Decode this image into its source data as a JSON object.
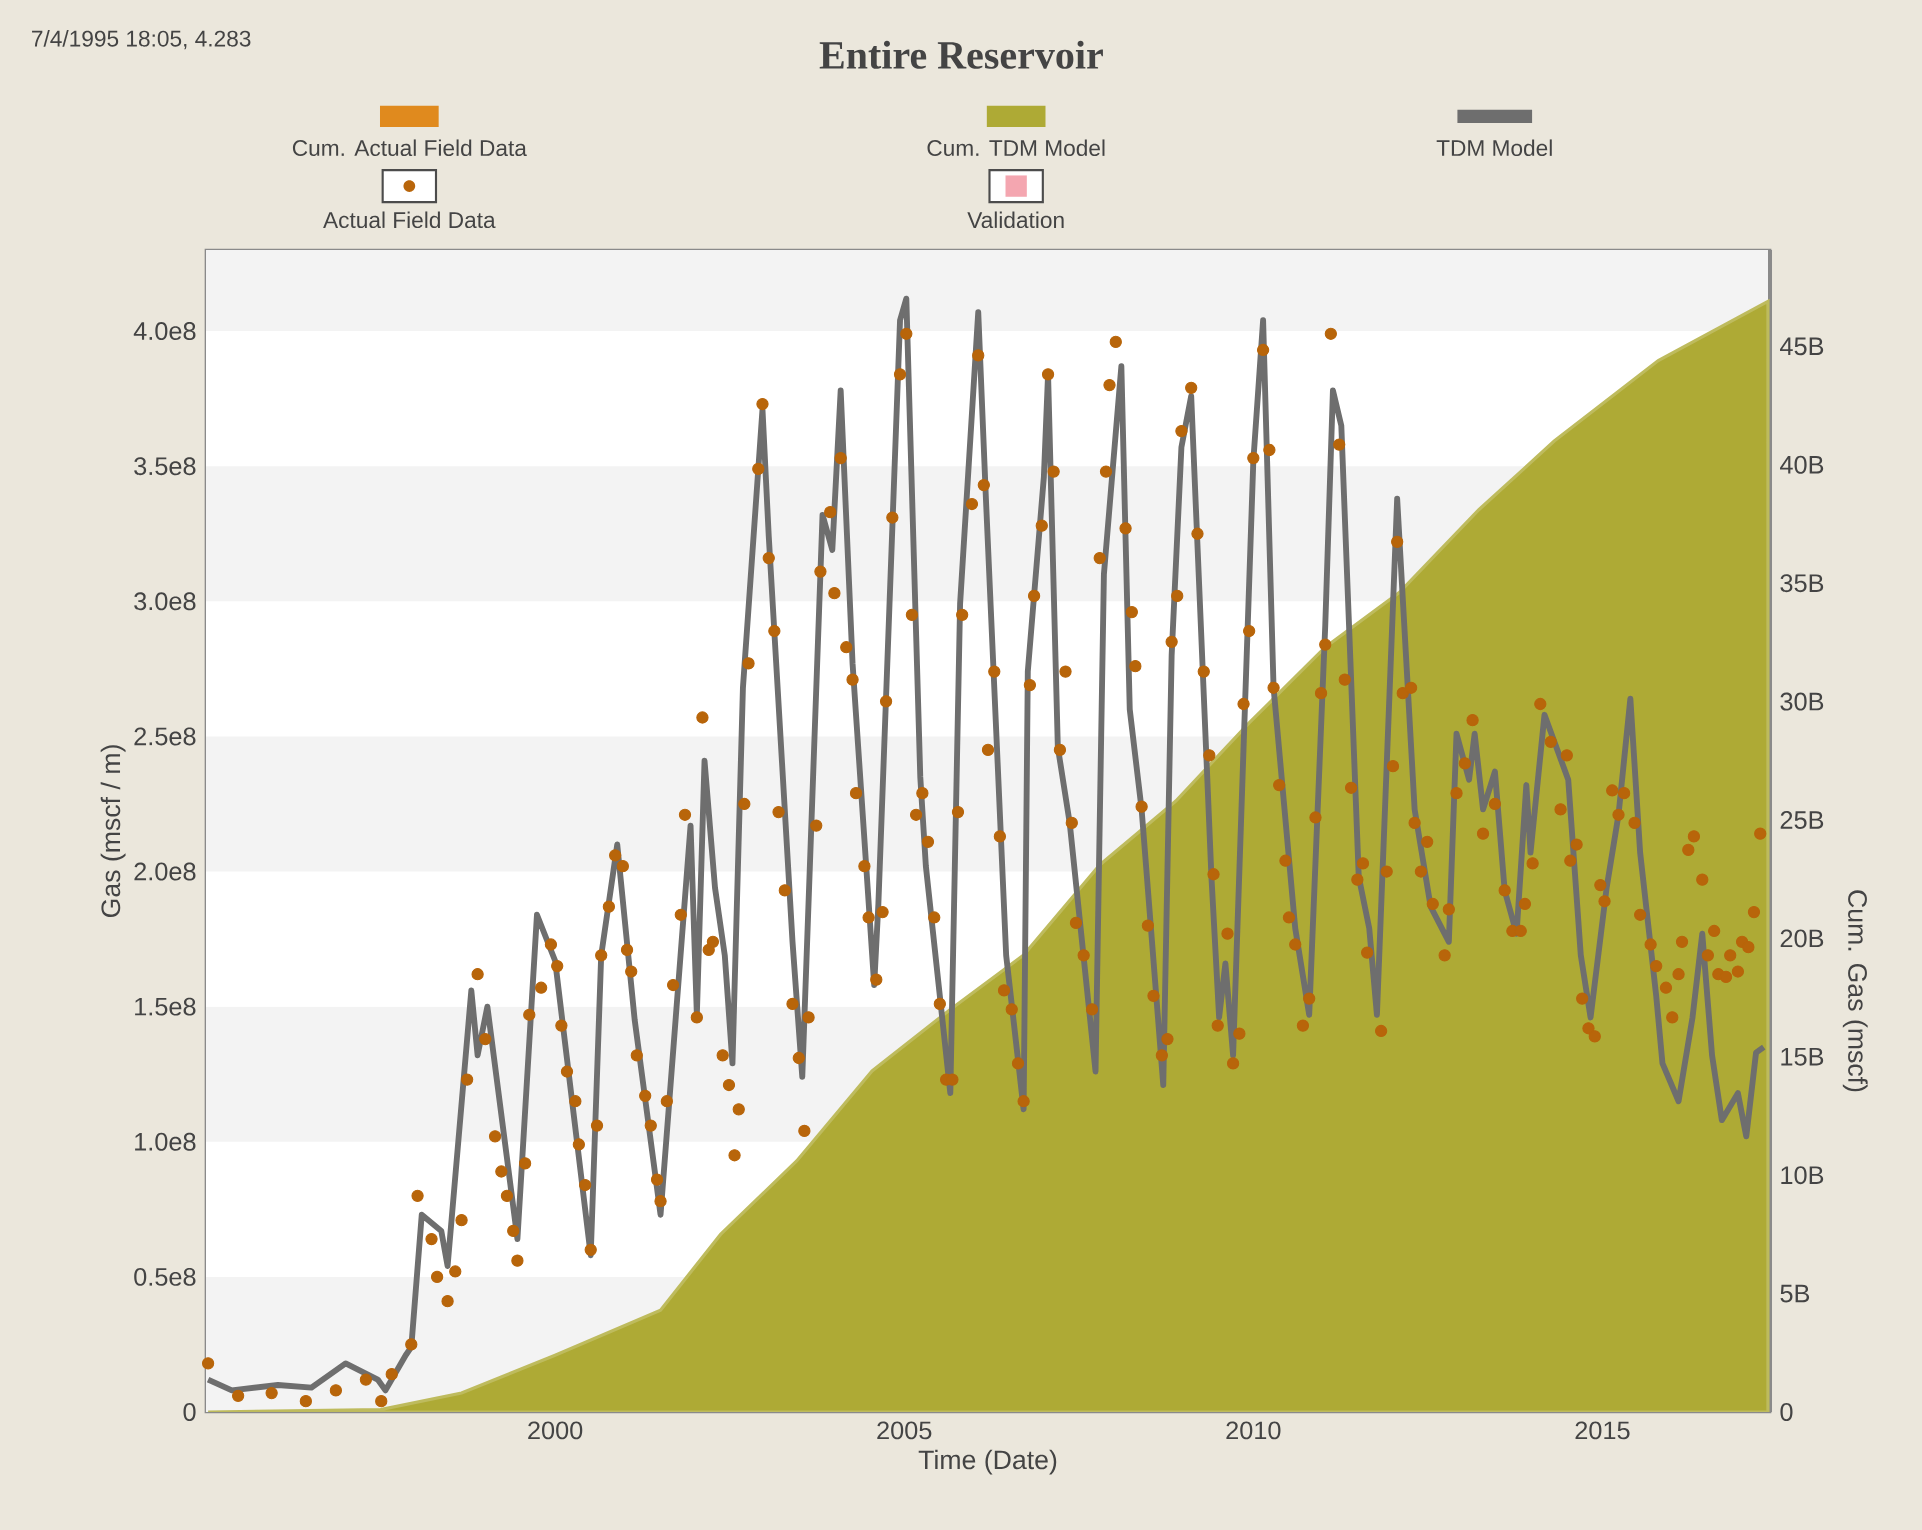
{
  "chart_data": {
    "type": "line",
    "title": "Entire Reservoir",
    "annotations": [
      "7/4/1995 18:05, 4.283"
    ],
    "xlabel": "Time (Date)",
    "ylabel": "Gas (mscf / m)",
    "y2label": "Cum. Gas (mscf)",
    "xlim": [
      1995,
      2017.4
    ],
    "xticks": [
      2000,
      2005,
      2010,
      2015
    ],
    "ylim": [
      0,
      430000000.0
    ],
    "yticks": [
      0,
      {
        "value": 50000000.0,
        "label": "0.5e8"
      },
      {
        "value": 100000000.0,
        "label": "1.0e8"
      },
      {
        "value": 150000000.0,
        "label": "1.5e8"
      },
      {
        "value": 200000000.0,
        "label": "2.0e8"
      },
      {
        "value": 250000000.0,
        "label": "2.5e8"
      },
      {
        "value": 300000000.0,
        "label": "3.0e8"
      },
      {
        "value": 350000000.0,
        "label": "3.5e8"
      },
      {
        "value": 400000000.0,
        "label": "4.0e8"
      }
    ],
    "y2lim": [
      0,
      49070000000.0
    ],
    "y2ticks": [
      0,
      {
        "value": 5000000000.0,
        "label": "5B"
      },
      {
        "value": 10000000000.0,
        "label": "10B"
      },
      {
        "value": 15000000000.0,
        "label": "15B"
      },
      {
        "value": 20000000000.0,
        "label": "20B"
      },
      {
        "value": 25000000000.0,
        "label": "25B"
      },
      {
        "value": 30000000000.0,
        "label": "30B"
      },
      {
        "value": 35000000000.0,
        "label": "35B"
      },
      {
        "value": 40000000000.0,
        "label": "40B"
      },
      {
        "value": 45000000000.0,
        "label": "45B"
      }
    ],
    "legend": "top",
    "series": [
      {
        "name": "Cum. Actual Field Data",
        "type": "area",
        "axis": "y2",
        "color": "#e08a1e"
      },
      {
        "name": "Cum. TDM Model",
        "type": "area",
        "axis": "y2",
        "color": "#aeaa35",
        "x": [
          1995.03,
          1997.5,
          1998.66,
          2000.0,
          2001.51,
          2002.37,
          2003.46,
          2004.54,
          2005.66,
          2006.71,
          2007.8,
          2008.89,
          2009.94,
          2011.03,
          2012.09,
          2013.23,
          2014.31,
          2015.8,
          2017.37
        ],
        "values": [
          0,
          100000000.0,
          800000000.0,
          2400000000.0,
          4300000000.0,
          7500000000.0,
          10600000000.0,
          14400000000.0,
          17000000000.0,
          19300000000.0,
          23100000000.0,
          25800000000.0,
          29100000000.0,
          32300000000.0,
          34600000000.0,
          38100000000.0,
          41000000000.0,
          44400000000.0,
          46900000000.0
        ]
      },
      {
        "name": "TDM Model",
        "type": "line",
        "color": "#6e6e6e",
        "x": [
          1995.03,
          1995.37,
          1996.03,
          1996.51,
          1997.0,
          1997.46,
          1997.57,
          1997.86,
          1997.94,
          1998.09,
          1998.37,
          1998.46,
          1998.8,
          1998.89,
          1999.03,
          1999.46,
          1999.74,
          2000.0,
          2000.51,
          2000.66,
          2000.89,
          2001.14,
          2001.51,
          2001.94,
          2002.03,
          2002.14,
          2002.29,
          2002.43,
          2002.54,
          2002.69,
          2002.97,
          2003.06,
          2003.4,
          2003.54,
          2003.83,
          2003.97,
          2004.09,
          2004.26,
          2004.57,
          2004.63,
          2004.94,
          2005.03,
          2005.23,
          2005.31,
          2005.66,
          2005.8,
          2006.06,
          2006.17,
          2006.46,
          2006.71,
          2006.77,
          2007.0,
          2007.06,
          2007.2,
          2007.37,
          2007.74,
          2007.86,
          2008.11,
          2008.23,
          2008.4,
          2008.71,
          2008.83,
          2008.97,
          2009.11,
          2009.4,
          2009.51,
          2009.6,
          2009.71,
          2010.0,
          2010.14,
          2010.29,
          2010.6,
          2010.8,
          2011.03,
          2011.14,
          2011.26,
          2011.51,
          2011.66,
          2011.77,
          2012.06,
          2012.31,
          2012.54,
          2012.8,
          2012.91,
          2013.09,
          2013.17,
          2013.29,
          2013.46,
          2013.6,
          2013.77,
          2013.91,
          2013.97,
          2014.17,
          2014.51,
          2014.69,
          2014.83,
          2015.06,
          2015.23,
          2015.4,
          2015.54,
          2015.77,
          2015.86,
          2016.09,
          2016.29,
          2016.43,
          2016.57,
          2016.71,
          2016.94,
          2017.06,
          2017.2,
          2017.31
        ],
        "values": [
          12000000.0,
          8000000.0,
          10000000.0,
          9000000.0,
          18000000.0,
          12000000.0,
          8000000.0,
          21000000.0,
          24000000.0,
          73000000.0,
          67000000.0,
          54000000.0,
          156000000.0,
          132000000.0,
          150000000.0,
          64000000.0,
          184000000.0,
          167000000.0,
          58000000.0,
          169000000.0,
          210000000.0,
          145000000.0,
          73000000.0,
          217000000.0,
          147000000.0,
          241000000.0,
          194000000.0,
          169000000.0,
          129000000.0,
          268000000.0,
          371000000.0,
          324000000.0,
          174000000.0,
          124000000.0,
          332000000.0,
          319000000.0,
          378000000.0,
          277000000.0,
          158000000.0,
          188000000.0,
          404000000.0,
          412000000.0,
          235000000.0,
          202000000.0,
          118000000.0,
          299000000.0,
          407000000.0,
          338000000.0,
          169000000.0,
          112000000.0,
          274000000.0,
          346000000.0,
          384000000.0,
          246000000.0,
          218000000.0,
          126000000.0,
          310000000.0,
          387000000.0,
          260000000.0,
          223000000.0,
          121000000.0,
          280000000.0,
          357000000.0,
          376000000.0,
          198000000.0,
          146000000.0,
          166000000.0,
          132000000.0,
          352000000.0,
          404000000.0,
          268000000.0,
          179000000.0,
          147000000.0,
          291000000.0,
          378000000.0,
          365000000.0,
          198000000.0,
          179000000.0,
          147000000.0,
          338000000.0,
          223000000.0,
          187000000.0,
          174000000.0,
          251000000.0,
          234000000.0,
          251000000.0,
          223000000.0,
          237000000.0,
          193000000.0,
          177000000.0,
          232000000.0,
          207000000.0,
          258000000.0,
          234000000.0,
          169000000.0,
          146000000.0,
          194000000.0,
          221000000.0,
          264000000.0,
          207000000.0,
          154000000.0,
          129000000.0,
          115000000.0,
          146000000.0,
          177000000.0,
          132000000.0,
          108000000.0,
          118000000.0,
          102000000.0,
          133000000.0,
          135000000.0
        ]
      },
      {
        "name": "Actual Field Data",
        "type": "scatter",
        "marker": "circle",
        "color": "#b8650a",
        "x": [
          1995.03,
          1995.46,
          1995.94,
          1996.43,
          1996.86,
          1997.29,
          1997.51,
          1997.66,
          1997.94,
          1998.03,
          1998.23,
          1998.31,
          1998.46,
          1998.57,
          1998.66,
          1998.74,
          1998.89,
          1999.0,
          1999.14,
          1999.23,
          1999.31,
          1999.4,
          1999.46,
          1999.57,
          1999.63,
          1999.8,
          1999.94,
          2000.03,
          2000.09,
          2000.17,
          2000.29,
          2000.34,
          2000.43,
          2000.51,
          2000.6,
          2000.66,
          2000.77,
          2000.86,
          2000.97,
          2001.03,
          2001.09,
          2001.17,
          2001.29,
          2001.37,
          2001.46,
          2001.51,
          2001.6,
          2001.69,
          2001.8,
          2001.86,
          2002.03,
          2002.11,
          2002.2,
          2002.26,
          2002.4,
          2002.49,
          2002.57,
          2002.63,
          2002.71,
          2002.77,
          2002.91,
          2002.97,
          2003.06,
          2003.14,
          2003.2,
          2003.29,
          2003.4,
          2003.49,
          2003.57,
          2003.63,
          2003.74,
          2003.8,
          2003.94,
          2004.0,
          2004.09,
          2004.17,
          2004.26,
          2004.31,
          2004.43,
          2004.49,
          2004.6,
          2004.69,
          2004.74,
          2004.83,
          2004.94,
          2005.03,
          2005.11,
          2005.17,
          2005.26,
          2005.34,
          2005.43,
          2005.51,
          2005.6,
          2005.69,
          2005.77,
          2005.83,
          2005.97,
          2006.06,
          2006.14,
          2006.2,
          2006.29,
          2006.37,
          2006.43,
          2006.54,
          2006.63,
          2006.71,
          2006.8,
          2006.86,
          2006.97,
          2007.06,
          2007.14,
          2007.23,
          2007.31,
          2007.4,
          2007.46,
          2007.57,
          2007.69,
          2007.8,
          2007.89,
          2007.94,
          2008.03,
          2008.17,
          2008.26,
          2008.31,
          2008.4,
          2008.49,
          2008.57,
          2008.69,
          2008.77,
          2008.83,
          2008.91,
          2008.97,
          2009.11,
          2009.2,
          2009.29,
          2009.37,
          2009.43,
          2009.49,
          2009.63,
          2009.71,
          2009.8,
          2009.86,
          2009.94,
          2010.0,
          2010.14,
          2010.23,
          2010.29,
          2010.37,
          2010.46,
          2010.51,
          2010.6,
          2010.71,
          2010.8,
          2010.89,
          2010.97,
          2011.03,
          2011.11,
          2011.23,
          2011.31,
          2011.4,
          2011.49,
          2011.57,
          2011.63,
          2011.83,
          2011.91,
          2012.0,
          2012.06,
          2012.14,
          2012.26,
          2012.31,
          2012.4,
          2012.49,
          2012.57,
          2012.74,
          2012.8,
          2012.91,
          2013.03,
          2013.14,
          2013.29,
          2013.46,
          2013.6,
          2013.71,
          2013.83,
          2013.89,
          2014.0,
          2014.11,
          2014.26,
          2014.4,
          2014.49,
          2014.54,
          2014.63,
          2014.71,
          2014.8,
          2014.89,
          2014.97,
          2015.03,
          2015.14,
          2015.23,
          2015.31,
          2015.46,
          2015.54,
          2015.69,
          2015.77,
          2015.91,
          2016.0,
          2016.09,
          2016.14,
          2016.23,
          2016.31,
          2016.43,
          2016.51,
          2016.6,
          2016.66,
          2016.77,
          2016.83,
          2016.94,
          2017.0,
          2017.09,
          2017.17,
          2017.26
        ],
        "values": [
          18000000.0,
          6000000.0,
          7000000.0,
          4000000.0,
          8000000.0,
          12000000.0,
          4000000.0,
          14000000.0,
          25000000.0,
          80000000.0,
          64000000.0,
          50000000.0,
          41000000.0,
          52000000.0,
          71000000.0,
          123000000.0,
          162000000.0,
          138000000.0,
          102000000.0,
          89000000.0,
          80000000.0,
          67000000.0,
          56000000.0,
          92000000.0,
          147000000.0,
          157000000.0,
          173000000.0,
          165000000.0,
          143000000.0,
          126000000.0,
          115000000.0,
          99000000.0,
          84000000.0,
          60000000.0,
          106000000.0,
          169000000.0,
          187000000.0,
          206000000.0,
          202000000.0,
          171000000.0,
          163000000.0,
          132000000.0,
          117000000.0,
          106000000.0,
          86000000.0,
          78000000.0,
          115000000.0,
          158000000.0,
          184000000.0,
          221000000.0,
          146000000.0,
          257000000.0,
          171000000.0,
          174000000.0,
          132000000.0,
          121000000.0,
          95000000.0,
          112000000.0,
          225000000.0,
          277000000.0,
          349000000.0,
          373000000.0,
          316000000.0,
          289000000.0,
          222000000.0,
          193000000.0,
          151000000.0,
          131000000.0,
          104000000.0,
          146000000.0,
          217000000.0,
          311000000.0,
          333000000.0,
          303000000.0,
          353000000.0,
          283000000.0,
          271000000.0,
          229000000.0,
          202000000.0,
          183000000.0,
          160000000.0,
          185000000.0,
          263000000.0,
          331000000.0,
          384000000.0,
          399000000.0,
          295000000.0,
          221000000.0,
          229000000.0,
          211000000.0,
          183000000.0,
          151000000.0,
          123000000.0,
          123000000.0,
          222000000.0,
          295000000.0,
          336000000.0,
          391000000.0,
          343000000.0,
          245000000.0,
          274000000.0,
          213000000.0,
          156000000.0,
          149000000.0,
          129000000.0,
          115000000.0,
          269000000.0,
          302000000.0,
          328000000.0,
          384000000.0,
          348000000.0,
          245000000.0,
          274000000.0,
          218000000.0,
          181000000.0,
          169000000.0,
          149000000.0,
          316000000.0,
          348000000.0,
          380000000.0,
          396000000.0,
          327000000.0,
          296000000.0,
          276000000.0,
          224000000.0,
          180000000.0,
          154000000.0,
          132000000.0,
          138000000.0,
          285000000.0,
          302000000.0,
          363000000.0,
          379000000.0,
          325000000.0,
          274000000.0,
          243000000.0,
          199000000.0,
          143000000.0,
          177000000.0,
          129000000.0,
          140000000.0,
          262000000.0,
          289000000.0,
          353000000.0,
          393000000.0,
          356000000.0,
          268000000.0,
          232000000.0,
          204000000.0,
          183000000.0,
          173000000.0,
          143000000.0,
          153000000.0,
          220000000.0,
          266000000.0,
          284000000.0,
          399000000.0,
          358000000.0,
          271000000.0,
          231000000.0,
          197000000.0,
          203000000.0,
          170000000.0,
          141000000.0,
          200000000.0,
          239000000.0,
          322000000.0,
          266000000.0,
          268000000.0,
          218000000.0,
          200000000.0,
          211000000.0,
          188000000.0,
          169000000.0,
          186000000.0,
          229000000.0,
          240000000.0,
          256000000.0,
          214000000.0,
          225000000.0,
          193000000.0,
          178000000.0,
          178000000.0,
          188000000.0,
          203000000.0,
          262000000.0,
          248000000.0,
          223000000.0,
          243000000.0,
          204000000.0,
          210000000.0,
          153000000.0,
          142000000.0,
          139000000.0,
          195000000.0,
          189000000.0,
          230000000.0,
          221000000.0,
          229000000.0,
          218000000.0,
          184000000.0,
          173000000.0,
          165000000.0,
          157000000.0,
          146000000.0,
          162000000.0,
          174000000.0,
          208000000.0,
          213000000.0,
          197000000.0,
          169000000.0,
          178000000.0,
          162000000.0,
          161000000.0,
          169000000.0,
          163000000.0,
          174000000.0,
          172000000.0,
          185000000.0,
          214000000.0
        ]
      },
      {
        "name": "Validation",
        "type": "scatter",
        "marker": "square",
        "color": "#f4a6b0"
      }
    ]
  }
}
